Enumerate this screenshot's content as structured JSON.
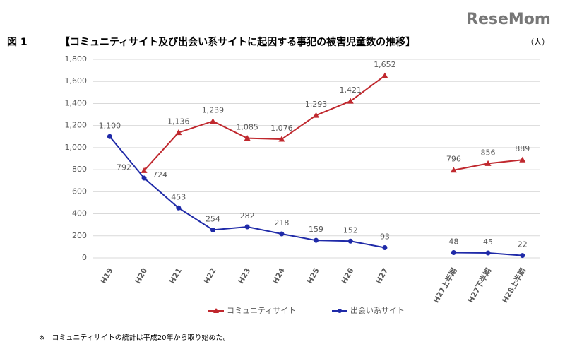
{
  "watermark": "ReseMom",
  "chart_data": {
    "type": "line",
    "figure_label": "図 1",
    "title": "【コミュニティサイト及び出会い系サイトに起因する事犯の被害児童数の推移】",
    "unit": "（人）",
    "footnote": "※　コミュニティサイトの統計は平成20年から取り始めた。",
    "categories": [
      "H19",
      "H20",
      "H21",
      "H22",
      "H23",
      "H24",
      "H25",
      "H26",
      "H27",
      null,
      "H27上半期",
      "H27下半期",
      "H28上半期"
    ],
    "series": [
      {
        "name": "コミュニティサイト",
        "color": "#c0282e",
        "marker": "triangle",
        "values": [
          null,
          792,
          1136,
          1239,
          1085,
          1076,
          1293,
          1421,
          1652,
          null,
          796,
          856,
          889
        ],
        "value_labels": [
          null,
          "792",
          "1,136",
          "1,239",
          "1,085",
          "1,076",
          "1,293",
          "1,421",
          "1,652",
          null,
          "796",
          "856",
          "889"
        ]
      },
      {
        "name": "出会い系サイト",
        "color": "#1f2aa8",
        "marker": "circle",
        "values": [
          1100,
          724,
          453,
          254,
          282,
          218,
          159,
          152,
          93,
          null,
          48,
          45,
          22
        ],
        "value_labels": [
          "1,100",
          "724",
          "453",
          "254",
          "282",
          "218",
          "159",
          "152",
          "93",
          null,
          "48",
          "45",
          "22"
        ]
      }
    ],
    "ylim": [
      0,
      1800
    ],
    "yticks": [
      0,
      200,
      400,
      600,
      800,
      {
        "value": 1000,
        "label": "1,000"
      },
      {
        "value": 1200,
        "label": "1,200"
      },
      {
        "value": 1400,
        "label": "1,400"
      },
      {
        "value": 1600,
        "label": "1,600"
      },
      {
        "value": 1800,
        "label": "1,800"
      }
    ],
    "grid": true,
    "legend": "bottom"
  }
}
